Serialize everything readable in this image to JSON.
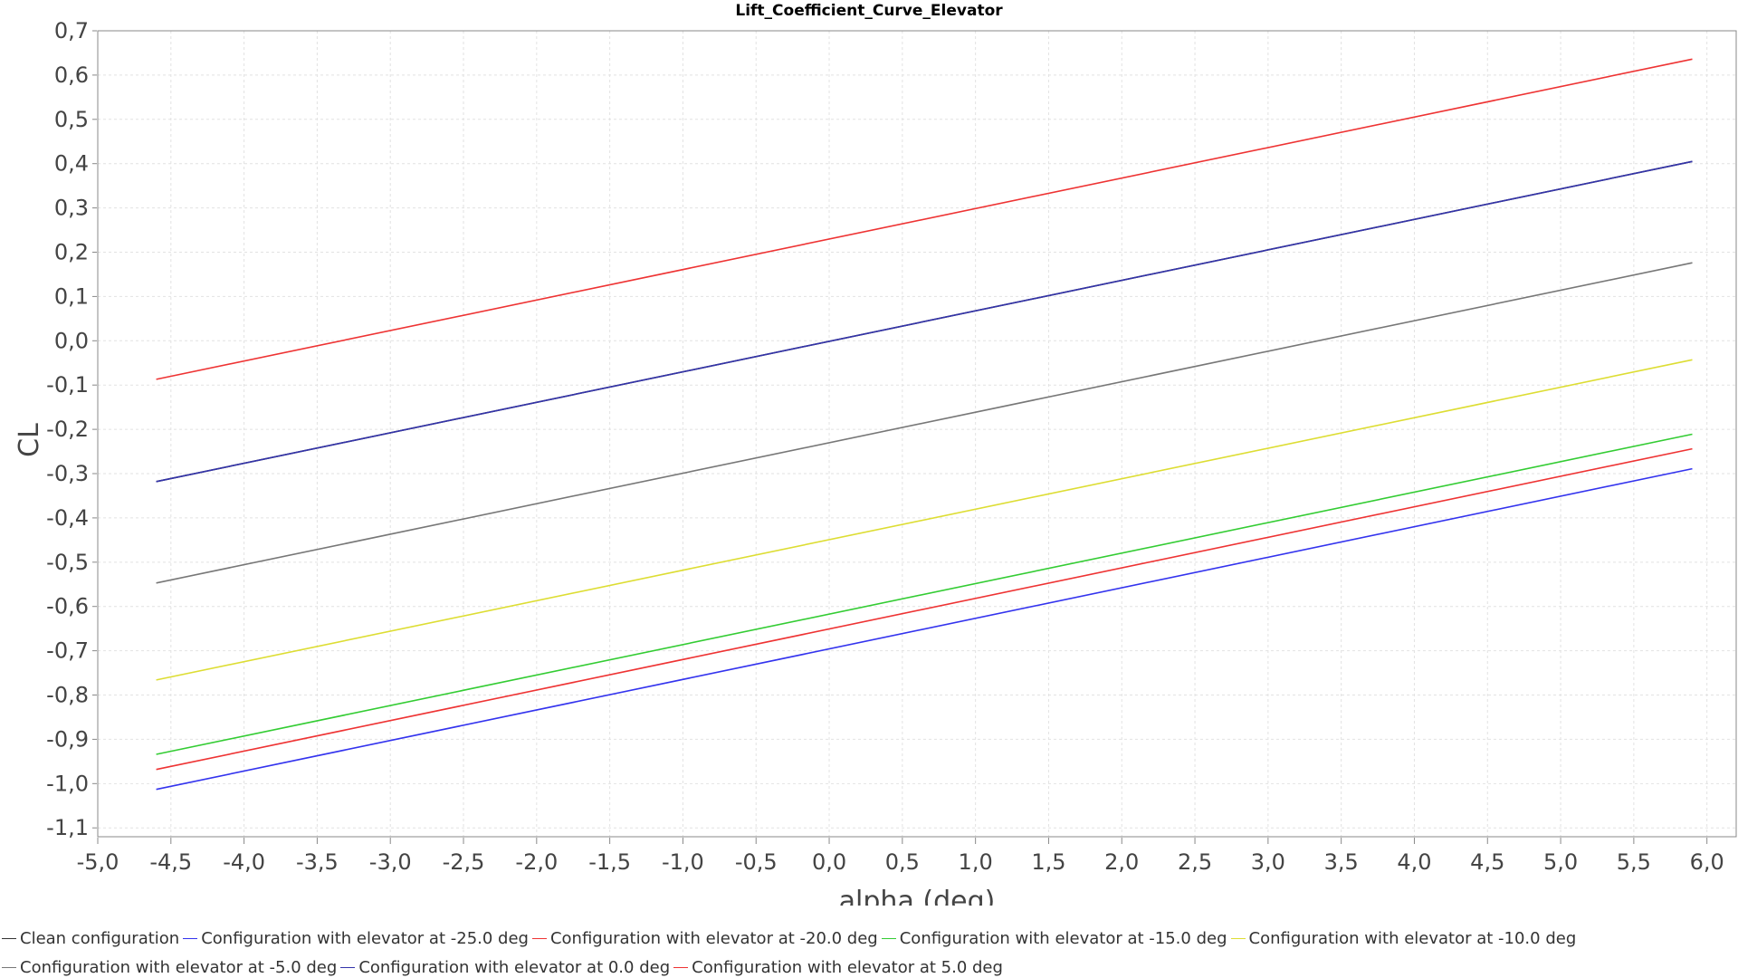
{
  "chart_data": {
    "type": "line",
    "title": "Lift_Coefficient_Curve_Elevator",
    "xlabel": "alpha (deg)",
    "ylabel": "CL",
    "xlim": [
      -5.0,
      6.2
    ],
    "ylim": [
      -1.12,
      0.7
    ],
    "x_ticks": [
      "-5,0",
      "-4,5",
      "-4,0",
      "-3,5",
      "-3,0",
      "-2,5",
      "-2,0",
      "-1,5",
      "-1,0",
      "-0,5",
      "0,0",
      "0,5",
      "1,0",
      "1,5",
      "2,0",
      "2,5",
      "3,0",
      "3,5",
      "4,0",
      "4,5",
      "5,0",
      "5,5",
      "6,0"
    ],
    "y_ticks": [
      "0,7",
      "0,6",
      "0,5",
      "0,4",
      "0,3",
      "0,2",
      "0,1",
      "0,0",
      "-0,1",
      "-0,2",
      "-0,3",
      "-0,4",
      "-0,5",
      "-0,6",
      "-0,7",
      "-0,8",
      "-0,9",
      "-1,0",
      "-1,1"
    ],
    "grid": true,
    "legend_position": "bottom",
    "series": [
      {
        "name": "Clean configuration",
        "color": "#333333",
        "x": [
          -4.6,
          5.9
        ],
        "y": [
          -0.318,
          0.405
        ]
      },
      {
        "name": "Configuration with elevator at -25.0 deg",
        "color": "#3333ee",
        "x": [
          -4.6,
          5.9
        ],
        "y": [
          -1.013,
          -0.289
        ]
      },
      {
        "name": "Configuration with elevator at -20.0 deg",
        "color": "#ee3333",
        "x": [
          -4.6,
          5.9
        ],
        "y": [
          -0.968,
          -0.244
        ]
      },
      {
        "name": "Configuration with elevator at -15.0 deg",
        "color": "#33cc33",
        "x": [
          -4.6,
          5.9
        ],
        "y": [
          -0.934,
          -0.211
        ]
      },
      {
        "name": "Configuration with elevator at -10.0 deg",
        "color": "#dddd33",
        "x": [
          -4.6,
          5.9
        ],
        "y": [
          -0.766,
          -0.043
        ]
      },
      {
        "name": "Configuration with elevator at -5.0 deg",
        "color": "#777777",
        "x": [
          -4.6,
          5.9
        ],
        "y": [
          -0.547,
          0.176
        ]
      },
      {
        "name": "Configuration with elevator at 0.0 deg",
        "color": "#3333aa",
        "x": [
          -4.6,
          5.9
        ],
        "y": [
          -0.318,
          0.405
        ]
      },
      {
        "name": "Configuration with elevator at 5.0 deg",
        "color": "#ee3333",
        "x": [
          -4.6,
          5.9
        ],
        "y": [
          -0.087,
          0.636
        ]
      }
    ]
  },
  "legend": {
    "row1": [
      {
        "label": "Clean configuration",
        "color": "#333333"
      },
      {
        "label": "Configuration with elevator at -25.0 deg",
        "color": "#3333ee"
      },
      {
        "label": "Configuration with elevator at -20.0 deg",
        "color": "#ee3333"
      },
      {
        "label": "Configuration with elevator at -15.0 deg",
        "color": "#33cc33"
      },
      {
        "label": "Configuration with elevator at -10.0 deg",
        "color": "#dddd33"
      }
    ],
    "row2": [
      {
        "label": "Configuration with elevator at -5.0 deg",
        "color": "#777777"
      },
      {
        "label": "Configuration with elevator at 0.0 deg",
        "color": "#3333aa"
      },
      {
        "label": "Configuration with elevator at 5.0 deg",
        "color": "#ee3333"
      }
    ]
  }
}
